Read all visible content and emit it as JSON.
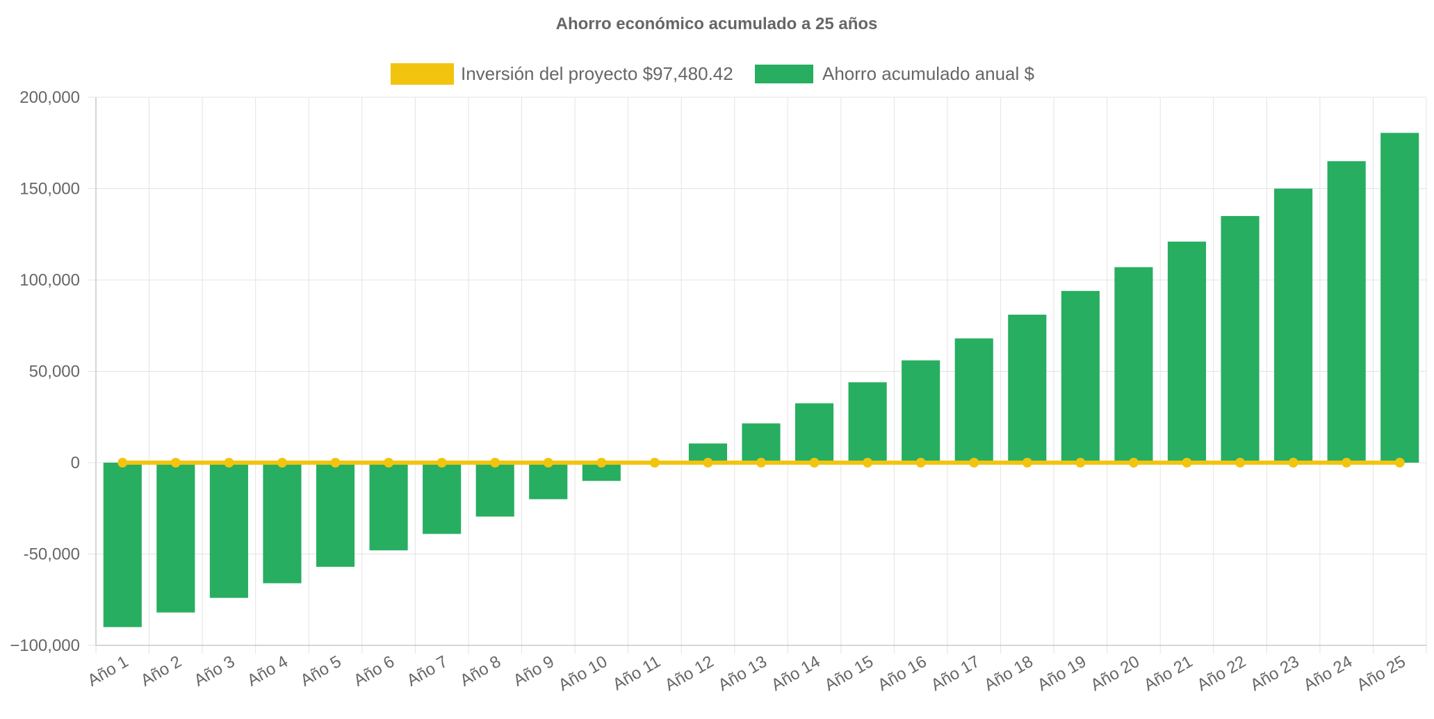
{
  "chart_data": {
    "type": "bar",
    "title": "Ahorro económico acumulado a 25 años",
    "xlabel": "",
    "ylabel": "",
    "ylim": [
      -100000,
      200000
    ],
    "yticks": [
      -100000,
      -50000,
      0,
      50000,
      100000,
      150000,
      200000
    ],
    "ytick_labels": [
      "−100,000",
      "-50,000",
      "0",
      "50,000",
      "100,000",
      "150,000",
      "200,000"
    ],
    "grid": true,
    "legend_position": "top",
    "categories": [
      "Año 1",
      "Año 2",
      "Año 3",
      "Año 4",
      "Año 5",
      "Año 6",
      "Año 7",
      "Año 8",
      "Año 9",
      "Año 10",
      "Año 11",
      "Año 12",
      "Año 13",
      "Año 14",
      "Año 15",
      "Año 16",
      "Año 17",
      "Año 18",
      "Año 19",
      "Año 20",
      "Año 21",
      "Año 22",
      "Año 23",
      "Año 24",
      "Año 25"
    ],
    "series": [
      {
        "name": "Inversión del proyecto $97,480.42",
        "type": "line",
        "color": "#f2c40f",
        "values": [
          0,
          0,
          0,
          0,
          0,
          0,
          0,
          0,
          0,
          0,
          0,
          0,
          0,
          0,
          0,
          0,
          0,
          0,
          0,
          0,
          0,
          0,
          0,
          0,
          0
        ]
      },
      {
        "name": "Ahorro acumulado anual $",
        "type": "bar",
        "color": "#27ae60",
        "values": [
          -90000,
          -82000,
          -74000,
          -66000,
          -57000,
          -48000,
          -39000,
          -29500,
          -20000,
          -10000,
          0,
          10500,
          21500,
          32500,
          44000,
          56000,
          68000,
          81000,
          94000,
          107000,
          121000,
          135000,
          150000,
          165000,
          180500
        ]
      }
    ]
  },
  "colors": {
    "grid": "#e3e3e3",
    "axis": "#c8c8c8",
    "text": "#666666",
    "title": "#666666"
  }
}
